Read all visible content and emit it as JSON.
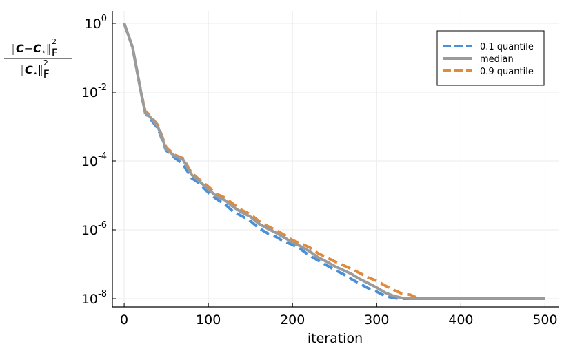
{
  "chart_data": {
    "type": "line",
    "xlabel": "iteration",
    "y_scale": "log10",
    "xlim": [
      -14,
      516
    ],
    "ylim": [
      1e-08,
      1
    ],
    "grid": true,
    "legend_position": "top-right",
    "x_ticks": [
      0,
      100,
      200,
      300,
      400,
      500
    ],
    "y_ticks": [
      {
        "value": 1,
        "base": "10",
        "exp": "0"
      },
      {
        "value": 0.01,
        "base": "10",
        "exp": "-2"
      },
      {
        "value": 0.0001,
        "base": "10",
        "exp": "-4"
      },
      {
        "value": 1e-06,
        "base": "10",
        "exp": "-6"
      },
      {
        "value": 1e-08,
        "base": "10",
        "exp": "-8"
      }
    ],
    "ylabel_parts": {
      "num_left": "‖",
      "num_c": "C",
      "num_minus": "−",
      "num_cstar": "C",
      "num_star": "⋆",
      "num_right": "‖",
      "num_sub": "F",
      "num_sup": "2",
      "den_left": "‖",
      "den_c": "C",
      "den_star": "⋆",
      "den_right": "‖",
      "den_sub": "F",
      "den_sup": "2"
    },
    "series": [
      {
        "name": "0.1 quantile",
        "color": "#4a90d9",
        "dash": "dashed",
        "x": [
          0,
          10,
          20,
          25,
          30,
          40,
          50,
          60,
          70,
          80,
          90,
          100,
          110,
          120,
          130,
          140,
          150,
          160,
          170,
          180,
          190,
          200,
          210,
          220,
          230,
          240,
          250,
          260,
          270,
          280,
          290,
          300,
          310,
          320,
          330,
          340,
          350,
          400,
          500
        ],
        "y": [
          1,
          0.2,
          0.01,
          0.0025,
          0.0018,
          0.0009,
          0.0002,
          0.000125,
          8e-05,
          3.2e-05,
          2.2e-05,
          1.2e-05,
          7.8e-06,
          5.5e-06,
          3.3e-06,
          2.5e-06,
          1.8e-06,
          1.12e-06,
          8e-07,
          6.3e-07,
          4.6e-07,
          3.7e-07,
          2.7e-07,
          1.8e-07,
          1.3e-07,
          9.5e-08,
          6.9e-08,
          5.2e-08,
          3.7e-08,
          2.7e-08,
          2e-08,
          1.6e-08,
          1.2e-08,
          1.05e-08,
          1e-08,
          1e-08,
          1e-08,
          1e-08,
          1e-08
        ]
      },
      {
        "name": "median",
        "color": "#9b9b9b",
        "dash": "solid",
        "x": [
          0,
          10,
          20,
          25,
          30,
          40,
          50,
          60,
          70,
          80,
          90,
          100,
          110,
          120,
          130,
          140,
          150,
          160,
          170,
          180,
          190,
          200,
          210,
          220,
          230,
          240,
          250,
          260,
          270,
          280,
          290,
          300,
          310,
          320,
          330,
          340,
          350,
          400,
          500
        ],
        "y": [
          1,
          0.2,
          0.01,
          0.0025,
          0.002,
          0.001,
          0.00022,
          0.00014,
          0.00011,
          4e-05,
          2.5e-05,
          1.5e-05,
          9.3e-06,
          7.2e-06,
          4.5e-06,
          3.2e-06,
          2.4e-06,
          1.5e-06,
          1.1e-06,
          8.3e-07,
          6e-07,
          4.3e-07,
          3.3e-07,
          2.4e-07,
          1.6e-07,
          1.2e-07,
          8.8e-08,
          6.8e-08,
          5.2e-08,
          3.7e-08,
          2.8e-08,
          2.1e-08,
          1.5e-08,
          1.2e-08,
          1.05e-08,
          1e-08,
          1e-08,
          1e-08,
          1e-08
        ]
      },
      {
        "name": "0.9 quantile",
        "color": "#e08a3c",
        "dash": "dashed",
        "x": [
          0,
          10,
          20,
          25,
          30,
          40,
          50,
          60,
          70,
          80,
          90,
          100,
          110,
          120,
          130,
          140,
          150,
          160,
          170,
          180,
          190,
          200,
          210,
          220,
          230,
          240,
          250,
          260,
          270,
          280,
          290,
          300,
          310,
          320,
          330,
          340,
          350,
          400,
          500
        ],
        "y": [
          1,
          0.2,
          0.01,
          0.0028,
          0.0022,
          0.0011,
          0.00025,
          0.00015,
          0.00012,
          4.5e-05,
          2.8e-05,
          1.8e-05,
          1.1e-05,
          8.5e-06,
          5.5e-06,
          3.7e-06,
          2.8e-06,
          1.8e-06,
          1.3e-06,
          9.8e-07,
          7.2e-07,
          5e-07,
          4e-07,
          3.1e-07,
          2.1e-07,
          1.6e-07,
          1.2e-07,
          9.4e-08,
          7.3e-08,
          5.5e-08,
          4.1e-08,
          3.3e-08,
          2.4e-08,
          1.8e-08,
          1.4e-08,
          1.3e-08,
          1e-08,
          1e-08,
          1e-08
        ]
      }
    ]
  }
}
